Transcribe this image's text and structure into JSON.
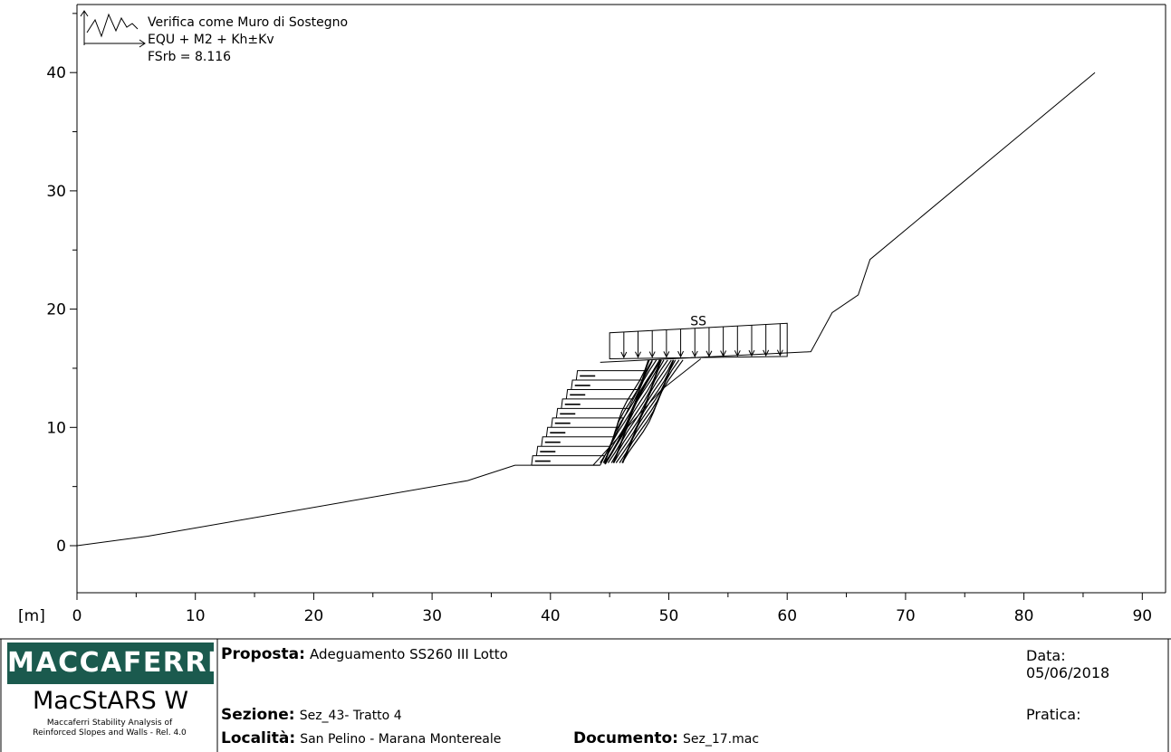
{
  "legend": {
    "title": "Verifica come Muro di Sostegno",
    "combination": "EQU + M2 + Kh±Kv",
    "safety_factor": "FSrb = 8.116"
  },
  "chart_data": {
    "type": "line",
    "xlabel": "",
    "ylabel": "",
    "unit_label": "[m]",
    "xlim": [
      0,
      90
    ],
    "ylim": [
      -4,
      46
    ],
    "x_ticks": [
      "0",
      "10",
      "20",
      "30",
      "40",
      "50",
      "60",
      "70",
      "80",
      "90"
    ],
    "y_ticks": [
      "0",
      "10",
      "20",
      "30",
      "40"
    ],
    "ground_profile": [
      [
        0,
        0
      ],
      [
        6,
        0.8
      ],
      [
        33,
        5.5
      ],
      [
        37,
        6.8
      ],
      [
        38.4,
        6.8
      ]
    ],
    "wall_base": [
      [
        38.4,
        6.8
      ],
      [
        44.2,
        6.8
      ]
    ],
    "upper_profile": [
      [
        44.2,
        15.5
      ],
      [
        62,
        16.4
      ],
      [
        63.8,
        19.7
      ],
      [
        66,
        21.2
      ],
      [
        67,
        24.2
      ],
      [
        86,
        40
      ]
    ],
    "excavation_line": [
      [
        43.6,
        6.8
      ],
      [
        49.4,
        13.2
      ],
      [
        52.7,
        15.8
      ]
    ],
    "surcharge": {
      "label": "SS",
      "x_start": 45,
      "x_end": 60,
      "top_start": 18,
      "top_end": 18.8,
      "base": 15.8
    },
    "reinforcement_layers": [
      6.8,
      7.6,
      8.4,
      9.2,
      10.0,
      10.8,
      11.6,
      12.4,
      13.2,
      14.0,
      14.8
    ]
  },
  "footer": {
    "brand": "MACCAFERRI",
    "product": "MacStARS W",
    "product_sub_1": "Maccaferri Stability Analysis of",
    "product_sub_2": "Reinforced Slopes and Walls - Rel. 4.0",
    "proposta_label": "Proposta:",
    "proposta_value": "Adeguamento SS260 III Lotto",
    "sezione_label": "Sezione:",
    "sezione_value": "Sez_43- Tratto 4",
    "localita_label": "Località:",
    "localita_value": "San Pelino - Marana Montereale",
    "documento_label": "Documento:",
    "documento_value": "Sez_17.mac",
    "data_label": "Data:",
    "data_value": "05/06/2018",
    "pratica_label": "Pratica:"
  }
}
